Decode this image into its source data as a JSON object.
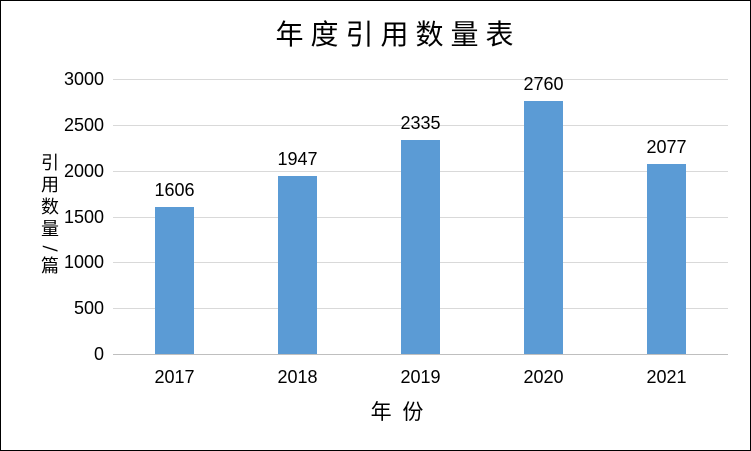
{
  "chart": {
    "title": "年度引用数量表",
    "x_axis_title": "年 份",
    "y_axis_title": "引用数量/篇",
    "colors": {
      "bar": "#5B9BD5",
      "gridline": "#D9D9D9",
      "axis_line": "#BFBFBF",
      "text": "#000000",
      "background": "#FFFFFF",
      "frame_border": "#000000"
    }
  },
  "chart_data": {
    "type": "bar",
    "title": "年度引用数量表",
    "xlabel": "年 份",
    "ylabel": "引用数量/篇",
    "categories": [
      "2017",
      "2018",
      "2019",
      "2020",
      "2021"
    ],
    "values": [
      1606,
      1947,
      2335,
      2760,
      2077
    ],
    "yticks": [
      0,
      500,
      1000,
      1500,
      2000,
      2500,
      3000
    ],
    "ylim": [
      0,
      3000
    ],
    "ytick_interval": 500,
    "grid": true,
    "legend": false,
    "data_labels": true,
    "bar_color": "#5B9BD5"
  }
}
